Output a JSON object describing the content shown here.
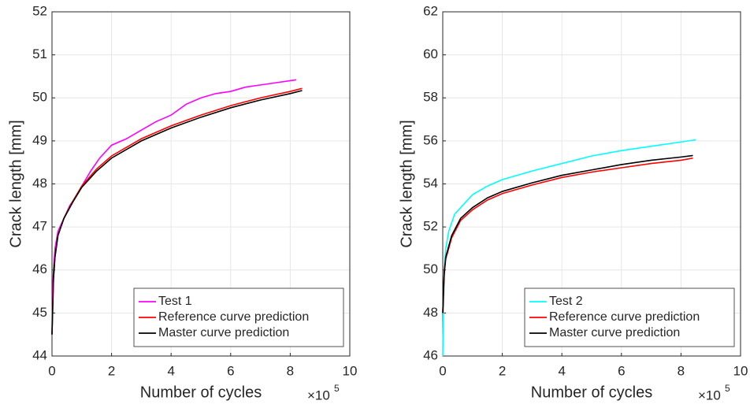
{
  "chart_data": [
    {
      "type": "line",
      "xlabel": "Number of cycles",
      "ylabel": "Crack length [mm]",
      "x_multiplier": "×10",
      "x_multiplier_exponent": "5",
      "xlim": [
        0,
        10
      ],
      "xticks": [
        0,
        2,
        4,
        6,
        8,
        10
      ],
      "ylim": [
        44,
        52
      ],
      "yticks": [
        44,
        45,
        46,
        47,
        48,
        49,
        50,
        51,
        52
      ],
      "grid": true,
      "legend": "lower right",
      "series": [
        {
          "name": "Test 1",
          "color": "#ff00ff",
          "x": [
            0,
            0.02,
            0.05,
            0.1,
            0.2,
            0.4,
            0.6,
            0.8,
            1.0,
            1.3,
            1.6,
            2.0,
            2.5,
            3.0,
            3.5,
            4.0,
            4.5,
            5.0,
            5.5,
            6.0,
            6.5,
            7.0,
            7.5,
            8.0,
            8.2
          ],
          "values": [
            44.5,
            45.5,
            46.0,
            46.5,
            46.9,
            47.2,
            47.5,
            47.7,
            47.95,
            48.3,
            48.6,
            48.9,
            49.05,
            49.25,
            49.45,
            49.6,
            49.85,
            50.0,
            50.1,
            50.15,
            50.25,
            50.3,
            50.35,
            50.4,
            50.42
          ]
        },
        {
          "name": "Reference curve prediction",
          "color": "#ff0000",
          "x": [
            0,
            0.05,
            0.1,
            0.2,
            0.4,
            0.7,
            1.0,
            1.5,
            2.0,
            3.0,
            4.0,
            5.0,
            6.0,
            7.0,
            8.0,
            8.4
          ],
          "values": [
            44.5,
            45.8,
            46.3,
            46.8,
            47.2,
            47.6,
            47.95,
            48.35,
            48.65,
            49.05,
            49.35,
            49.6,
            49.82,
            50.0,
            50.15,
            50.22
          ]
        },
        {
          "name": "Master curve prediction",
          "color": "#000000",
          "x": [
            0,
            0.05,
            0.1,
            0.2,
            0.4,
            0.7,
            1.0,
            1.5,
            2.0,
            3.0,
            4.0,
            5.0,
            6.0,
            7.0,
            8.0,
            8.4
          ],
          "values": [
            44.5,
            45.8,
            46.3,
            46.8,
            47.2,
            47.58,
            47.92,
            48.3,
            48.6,
            49.0,
            49.3,
            49.55,
            49.77,
            49.95,
            50.1,
            50.17
          ]
        }
      ]
    },
    {
      "type": "line",
      "xlabel": "Number of cycles",
      "ylabel": "Crack length [mm]",
      "x_multiplier": "×10",
      "x_multiplier_exponent": "5",
      "xlim": [
        0,
        10
      ],
      "xticks": [
        0,
        2,
        4,
        6,
        8,
        10
      ],
      "ylim": [
        46,
        62
      ],
      "yticks": [
        46,
        48,
        50,
        52,
        54,
        56,
        58,
        60,
        62
      ],
      "grid": true,
      "legend": "lower right",
      "series": [
        {
          "name": "Test 2",
          "color": "#00ffff",
          "x": [
            0,
            0.02,
            0.05,
            0.1,
            0.2,
            0.4,
            0.6,
            0.8,
            1.0,
            1.5,
            2.0,
            3.0,
            4.0,
            5.0,
            6.0,
            7.0,
            8.0,
            8.5
          ],
          "values": [
            46,
            48,
            50,
            51,
            51.8,
            52.6,
            52.9,
            53.2,
            53.5,
            53.9,
            54.2,
            54.6,
            54.95,
            55.3,
            55.55,
            55.75,
            55.95,
            56.05
          ]
        },
        {
          "name": "Reference curve prediction",
          "color": "#ff0000",
          "x": [
            0,
            0.05,
            0.1,
            0.3,
            0.6,
            1.0,
            1.5,
            2.0,
            3.0,
            4.0,
            5.0,
            6.0,
            7.0,
            8.0,
            8.4
          ],
          "values": [
            48,
            49.8,
            50.5,
            51.5,
            52.3,
            52.8,
            53.25,
            53.55,
            53.95,
            54.3,
            54.55,
            54.75,
            54.95,
            55.1,
            55.2
          ]
        },
        {
          "name": "Master curve prediction",
          "color": "#000000",
          "x": [
            0,
            0.05,
            0.1,
            0.3,
            0.6,
            1.0,
            1.5,
            2.0,
            3.0,
            4.0,
            5.0,
            6.0,
            7.0,
            8.0,
            8.4
          ],
          "values": [
            48,
            49.9,
            50.6,
            51.6,
            52.4,
            52.9,
            53.35,
            53.65,
            54.05,
            54.4,
            54.65,
            54.9,
            55.1,
            55.25,
            55.32
          ]
        }
      ]
    }
  ]
}
